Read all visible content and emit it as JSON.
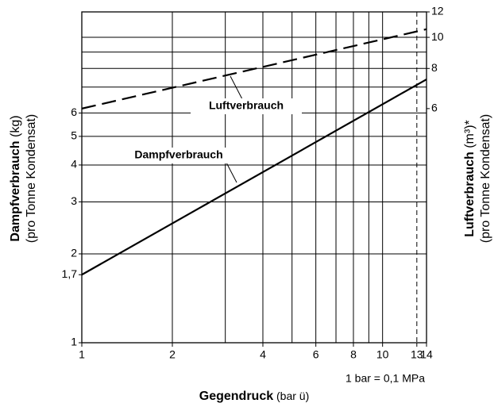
{
  "chart_data": {
    "type": "line",
    "xlabel": {
      "bold": "Gegendruck",
      "rest": "(bar ü)"
    },
    "ylabel": {
      "bold": "Dampfverbrauch",
      "unit": "(kg)",
      "sub": "(pro Tonne Kondensat)"
    },
    "y2label": {
      "bold": "Luftverbrauch",
      "unit": "(m³)*",
      "sub": "(pro Tonne Kondensat)"
    },
    "note": "1 bar = 0,1 MPa",
    "x": [
      1,
      14
    ],
    "series": [
      {
        "name": "Dampfverbrauch",
        "color": "#000000",
        "dashed": false,
        "values": [
          1.7,
          7.8
        ]
      },
      {
        "name": "Luftverbrauch",
        "color": "#000000",
        "dashed": true,
        "axis": "y2",
        "values": [
          6,
          10.6
        ]
      }
    ],
    "xscale": "log",
    "yscale": "log",
    "y2scale": "log",
    "xlim": [
      1,
      14
    ],
    "ylim": [
      1,
      13.2
    ],
    "y2lim": [
      1.12,
      12
    ],
    "xticks": [
      1,
      2,
      4,
      6,
      8,
      10,
      13,
      14
    ],
    "yticks": [
      1,
      {
        "value": 1.7,
        "label": "1,7"
      },
      2,
      3,
      4,
      5,
      6
    ],
    "y2ticks": [
      6,
      8,
      10,
      12
    ],
    "xgrid": [
      2,
      3,
      4,
      5,
      6,
      7,
      8,
      9,
      10
    ],
    "xgrid_dashed": [
      13
    ],
    "ygrid": [
      2,
      3,
      4,
      5,
      6
    ],
    "y2grid": [
      7,
      8,
      9,
      10
    ]
  }
}
